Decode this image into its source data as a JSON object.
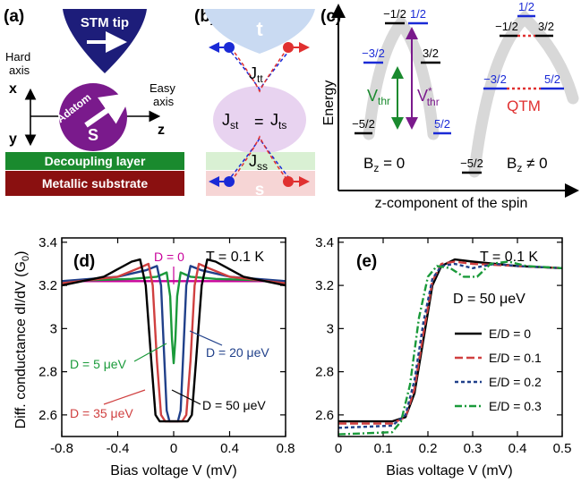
{
  "colors": {
    "navy": "#1d1d7a",
    "purple": "#7a1a8c",
    "green": "#1a8a2e",
    "dark_red": "#8a1010",
    "red": "#e03030",
    "blue": "#1a2ad6",
    "light_blue": "#c9daf2",
    "light_purple": "#e8d3f0",
    "light_green": "#d9f0d3",
    "light_red": "#f6d5d5",
    "gray_band": "#d8d8d8",
    "d0": "#c8009a",
    "d5": "#1a9a3a",
    "d20": "#20408a",
    "d35": "#d04040",
    "d50": "#000000"
  },
  "panel_a": {
    "label": "(a)",
    "stm_tip": "STM tip",
    "hard_axis_1": "Hard",
    "hard_axis_2": "axis",
    "easy_axis_1": "Easy",
    "easy_axis_2": "axis",
    "axis_x": "x",
    "axis_y": "y",
    "axis_z": "z",
    "adatom": "Adatom",
    "spin": "S",
    "decoupling": "Decoupling layer",
    "substrate": "Metallic substrate"
  },
  "panel_b": {
    "label": "(b)",
    "tip_letter": "t",
    "surface_letter": "s",
    "j_tt": "J",
    "j_tt_sub": "tt",
    "j_st": "J",
    "j_st_sub": "st",
    "equals": "=",
    "j_ts": "J",
    "j_ts_sub": "ts",
    "j_ss": "J",
    "j_ss_sub": "ss"
  },
  "panel_c": {
    "label": "(c)",
    "ylabel": "Energy",
    "xlabel": "z-component of the spin",
    "left_levels": [
      "−1/2",
      "1/2",
      "−3/2",
      "3/2",
      "−5/2",
      "5/2"
    ],
    "right_levels": [
      "1/2",
      "−1/2",
      "3/2",
      "−3/2",
      "5/2",
      "−5/2"
    ],
    "vthr": "V",
    "vthr_sub": "thr",
    "vthr_star": "V",
    "vthr_star_sup": "*",
    "vthr_star_sub": "thr",
    "qtm": "QTM",
    "bz0_pre": "B",
    "bz0_sub": "z",
    "bz0_post": " = 0",
    "bzn_pre": "B",
    "bzn_sub": "z",
    "bzn_post": " ≠ 0"
  },
  "panel_d": {
    "label": "(d)",
    "temperature": "T = 0.1 K",
    "ylabel": "Diff. conductance dI/dV (G",
    "ylabel_sub": "0",
    "ylabel_end": ")",
    "xlabel": "Bias voltage V (mV)",
    "annotations": [
      "D = 0",
      "D = 5 μeV",
      "D = 20 μeV",
      "D = 35 μeV",
      "D = 50 μeV"
    ]
  },
  "panel_e": {
    "label": "(e)",
    "temperature": "T = 0.1 K",
    "dlabel": "D = 50 μeV",
    "xlabel": "Bias voltage V (mV)"
  },
  "chart_data": [
    {
      "type": "line",
      "panel": "(d)",
      "xlim": [
        -0.8,
        0.8
      ],
      "ylim": [
        2.5,
        3.42
      ],
      "xticks": [
        "-0.8",
        "-0.4",
        "0",
        "0.4",
        "0.8"
      ],
      "xtick_values": [
        -0.8,
        -0.4,
        0,
        0.4,
        0.8
      ],
      "yticks": [
        "2.6",
        "2.8",
        "3",
        "3.2",
        "3.4"
      ],
      "ytick_values": [
        2.6,
        2.8,
        3.0,
        3.2,
        3.4
      ],
      "series": [
        {
          "name": "D = 0",
          "color_key": "d0",
          "x": [
            -0.8,
            0.8
          ],
          "y": [
            3.22,
            3.22
          ]
        },
        {
          "name": "D = 5 μeV",
          "color_key": "d5",
          "x": [
            -0.8,
            -0.3,
            -0.12,
            -0.05,
            -0.025,
            -0.012,
            0,
            0.012,
            0.025,
            0.05,
            0.12,
            0.3,
            0.8
          ],
          "y": [
            3.22,
            3.23,
            3.24,
            3.26,
            3.15,
            2.95,
            2.84,
            2.95,
            3.15,
            3.26,
            3.24,
            3.23,
            3.22
          ]
        },
        {
          "name": "D = 20 μeV",
          "color_key": "d20",
          "x": [
            -0.8,
            -0.4,
            -0.2,
            -0.12,
            -0.09,
            -0.07,
            -0.05,
            -0.03,
            0,
            0.03,
            0.05,
            0.07,
            0.09,
            0.12,
            0.2,
            0.4,
            0.8
          ],
          "y": [
            3.22,
            3.24,
            3.27,
            3.29,
            3.2,
            2.9,
            2.62,
            2.57,
            2.57,
            2.57,
            2.62,
            2.9,
            3.2,
            3.29,
            3.27,
            3.24,
            3.22
          ]
        },
        {
          "name": "D = 35 μeV",
          "color_key": "d35",
          "x": [
            -0.8,
            -0.4,
            -0.25,
            -0.18,
            -0.15,
            -0.12,
            -0.09,
            -0.06,
            0,
            0.06,
            0.09,
            0.12,
            0.15,
            0.18,
            0.25,
            0.4,
            0.8
          ],
          "y": [
            3.21,
            3.24,
            3.28,
            3.3,
            3.2,
            2.85,
            2.6,
            2.57,
            2.57,
            2.57,
            2.6,
            2.85,
            3.2,
            3.3,
            3.28,
            3.24,
            3.21
          ]
        },
        {
          "name": "D = 50 μeV",
          "color_key": "d50",
          "x": [
            -0.8,
            -0.5,
            -0.3,
            -0.24,
            -0.2,
            -0.16,
            -0.13,
            -0.1,
            0,
            0.1,
            0.13,
            0.16,
            0.2,
            0.24,
            0.3,
            0.5,
            0.8
          ],
          "y": [
            3.2,
            3.24,
            3.31,
            3.32,
            3.2,
            2.85,
            2.6,
            2.57,
            2.57,
            2.57,
            2.6,
            2.85,
            3.2,
            3.32,
            3.31,
            3.24,
            3.2
          ]
        }
      ]
    },
    {
      "type": "line",
      "panel": "(e)",
      "xlim": [
        0,
        0.5
      ],
      "ylim": [
        2.5,
        3.42
      ],
      "xticks": [
        "0",
        "0.1",
        "0.2",
        "0.3",
        "0.4",
        "0.5"
      ],
      "xtick_values": [
        0,
        0.1,
        0.2,
        0.3,
        0.4,
        0.5
      ],
      "yticks": [
        "2.6",
        "2.8",
        "3",
        "3.2",
        "3.4"
      ],
      "ytick_values": [
        2.6,
        2.8,
        3.0,
        3.2,
        3.4
      ],
      "legend_position": "bottom-right",
      "series": [
        {
          "name": "E/D = 0",
          "color_key": "d50",
          "dash": "solid",
          "x": [
            0,
            0.12,
            0.15,
            0.17,
            0.19,
            0.21,
            0.23,
            0.26,
            0.3,
            0.4,
            0.5
          ],
          "y": [
            2.57,
            2.57,
            2.59,
            2.7,
            2.95,
            3.2,
            3.29,
            3.32,
            3.31,
            3.29,
            3.28
          ]
        },
        {
          "name": "E/D = 0.1",
          "color_key": "d35",
          "dash": "dash",
          "x": [
            0,
            0.12,
            0.15,
            0.17,
            0.19,
            0.21,
            0.23,
            0.26,
            0.3,
            0.4,
            0.5
          ],
          "y": [
            2.56,
            2.56,
            2.59,
            2.72,
            2.98,
            3.22,
            3.3,
            3.31,
            3.3,
            3.29,
            3.28
          ]
        },
        {
          "name": "E/D = 0.2",
          "color_key": "d20",
          "dash": "dense",
          "x": [
            0,
            0.12,
            0.15,
            0.17,
            0.19,
            0.21,
            0.23,
            0.26,
            0.3,
            0.35,
            0.4,
            0.5
          ],
          "y": [
            2.54,
            2.55,
            2.6,
            2.76,
            3.03,
            3.23,
            3.29,
            3.3,
            3.28,
            3.3,
            3.29,
            3.28
          ]
        },
        {
          "name": "E/D = 0.3",
          "color_key": "d5",
          "dash": "dashdot",
          "x": [
            0,
            0.12,
            0.14,
            0.16,
            0.18,
            0.2,
            0.22,
            0.25,
            0.28,
            0.31,
            0.34,
            0.38,
            0.42,
            0.5
          ],
          "y": [
            2.51,
            2.52,
            2.57,
            2.74,
            3.05,
            3.24,
            3.29,
            3.28,
            3.24,
            3.24,
            3.3,
            3.31,
            3.29,
            3.28
          ]
        }
      ]
    }
  ]
}
